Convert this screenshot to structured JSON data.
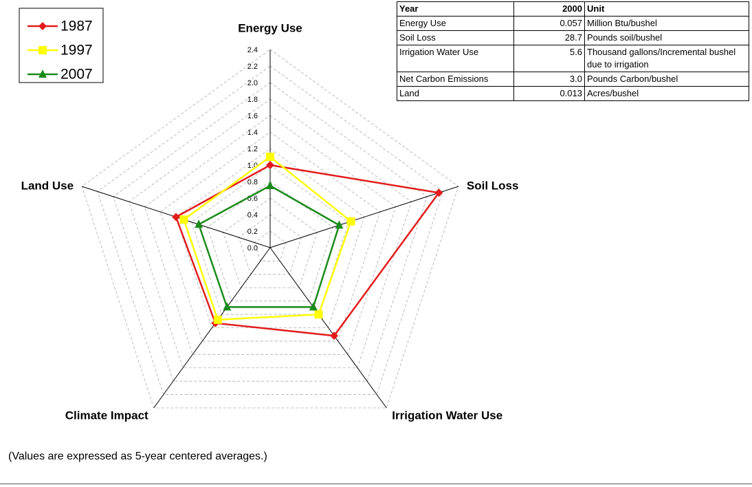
{
  "chart_data": {
    "type": "radar",
    "categories": [
      "Energy Use",
      "Soil Loss",
      "Irrigation Water Use",
      "Climate Impact",
      "Land Use"
    ],
    "series": [
      {
        "name": "1987",
        "color": "#e31b1b",
        "marker": "diamond",
        "values": [
          1.0,
          2.15,
          1.32,
          1.13,
          1.2
        ]
      },
      {
        "name": "1997",
        "color": "#ffff00",
        "marker": "square",
        "values": [
          1.1,
          1.03,
          1.0,
          1.08,
          1.1
        ]
      },
      {
        "name": "2007",
        "color": "#1a8a1a",
        "marker": "triangle",
        "values": [
          0.75,
          0.88,
          0.89,
          0.89,
          0.91
        ]
      }
    ],
    "rlim": [
      0,
      2.4
    ],
    "rticks": [
      {
        "value": 0,
        "label": "0.0"
      },
      {
        "value": 0.2,
        "label": "0.2"
      },
      {
        "value": 0.4,
        "label": "0.4"
      },
      {
        "value": 0.6,
        "label": "0.6"
      },
      {
        "value": 0.8,
        "label": "0.8"
      },
      {
        "value": 1.0,
        "label": "1.0"
      },
      {
        "value": 1.2,
        "label": "1.2"
      },
      {
        "value": 1.4,
        "label": "1.4"
      },
      {
        "value": 1.6,
        "label": "1.6"
      },
      {
        "value": 1.8,
        "label": "1.8"
      },
      {
        "value": 2.0,
        "label": "2.0"
      },
      {
        "value": 2.2,
        "label": "2.2"
      },
      {
        "value": 2.4,
        "label": "2.4"
      }
    ],
    "grid": true,
    "legend": "top-left",
    "annotation": "(Values are expressed as 5-year centered averages.)"
  },
  "table": {
    "header": [
      "Year",
      "2000",
      "Unit"
    ],
    "rows": [
      [
        "Energy Use",
        "0.057",
        "Million Btu/bushel"
      ],
      [
        "Soil Loss",
        "28.7",
        "Pounds soil/bushel"
      ],
      [
        "Irrigation Water Use",
        "5.6",
        "Thousand gallons/Incremental bushel due to irrigation"
      ],
      [
        "Net Carbon Emissions",
        "3.0",
        "Pounds Carbon/bushel"
      ],
      [
        "Land",
        "0.013",
        "Acres/bushel"
      ]
    ]
  }
}
